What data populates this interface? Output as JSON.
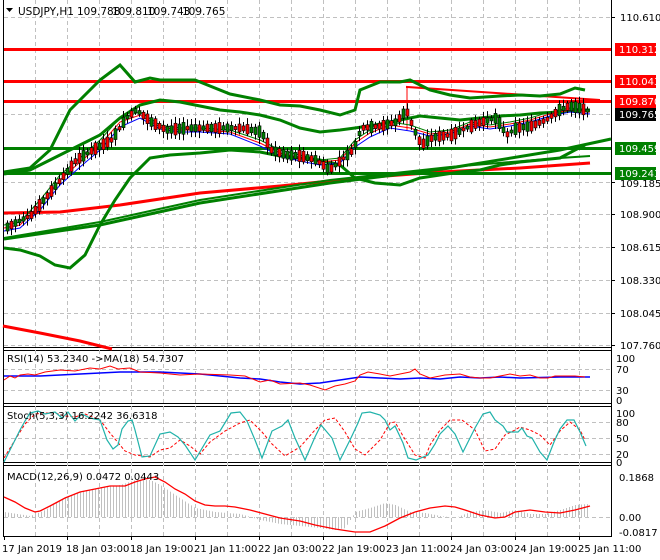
{
  "header": {
    "symbol": "USDJPY,H1",
    "open": "109.788",
    "high": "109.810",
    "low": "109.743",
    "close": "109.765"
  },
  "price_axis": {
    "ticks": [
      "110.610",
      "110.043",
      "109.185",
      "108.900",
      "108.615",
      "108.330",
      "108.045",
      "107.760"
    ],
    "levels": [
      {
        "value": "110.312",
        "color": "#ff0000",
        "kind": "resistance"
      },
      {
        "value": "110.043",
        "color": "#ff0000",
        "kind": "resistance"
      },
      {
        "value": "109.870",
        "color": "#ff0000",
        "kind": "resistance"
      },
      {
        "value": "109.765",
        "color": "#000000",
        "kind": "current-price"
      },
      {
        "value": "109.459",
        "color": "#008000",
        "kind": "support"
      },
      {
        "value": "109.243",
        "color": "#008000",
        "kind": "support"
      }
    ]
  },
  "rsi": {
    "label": "RSI(14) 53.2340  ->MA(18) 54.7307",
    "ticks": [
      "100",
      "70",
      "30",
      "0"
    ]
  },
  "stoch": {
    "label": "Stoch(5,3,3) 16.2242 36.6318",
    "ticks": [
      "100",
      "80",
      "50",
      "20",
      "0"
    ]
  },
  "macd": {
    "label": "MACD(12,26,9) 0.0472 0.0443",
    "ticks": [
      "0.1868",
      "0.00",
      "-0.0817"
    ]
  },
  "time_axis": {
    "labels": [
      "17 Jan 2019",
      "18 Jan 03:00",
      "18 Jan 19:00",
      "21 Jan 11:00",
      "22 Jan 03:00",
      "22 Jan 19:00",
      "23 Jan 11:00",
      "24 Jan 03:00",
      "24 Jan 19:00",
      "25 Jan 11:00"
    ]
  },
  "colors": {
    "bull_candle": "#008000",
    "bear_candle": "#ff0000",
    "bollinger": "#008000",
    "resistance": "#ff0000",
    "support": "#008000",
    "rsi_line": "#ff0000",
    "rsi_ma": "#0000ff",
    "stoch_main": "#20b2aa",
    "stoch_signal": "#ff0000",
    "macd_hist": "#c0c0c0",
    "macd_signal": "#ff0000"
  },
  "chart_data": {
    "type": "candlestick",
    "title": "USDJPY,H1",
    "ohlc_last": {
      "open": 109.788,
      "high": 109.81,
      "low": 109.743,
      "close": 109.765
    },
    "ylim": [
      107.76,
      110.61
    ],
    "x": [
      "17 Jan 2019",
      "18 Jan 03:00",
      "18 Jan 19:00",
      "21 Jan 11:00",
      "22 Jan 03:00",
      "22 Jan 19:00",
      "23 Jan 11:00",
      "24 Jan 03:00",
      "24 Jan 19:00",
      "25 Jan 11:00"
    ],
    "close_approx": [
      108.8,
      109.4,
      109.8,
      109.7,
      109.4,
      109.35,
      109.75,
      109.7,
      109.65,
      109.77
    ],
    "horizontal_levels": [
      110.312,
      110.043,
      109.87,
      109.459,
      109.243
    ],
    "current_price": 109.765,
    "indicators": [
      {
        "name": "RSI(14)",
        "value": 53.234,
        "ma_name": "MA(18)",
        "ma_value": 54.7307,
        "ylim": [
          0,
          100
        ],
        "levels": [
          30,
          70
        ]
      },
      {
        "name": "Stoch(5,3,3)",
        "main": 16.2242,
        "signal": 36.6318,
        "ylim": [
          0,
          100
        ],
        "levels": [
          20,
          50,
          80
        ]
      },
      {
        "name": "MACD(12,26,9)",
        "main": 0.0472,
        "signal": 0.0443,
        "ylim": [
          -0.0817,
          0.1868
        ]
      }
    ],
    "grid": true
  }
}
